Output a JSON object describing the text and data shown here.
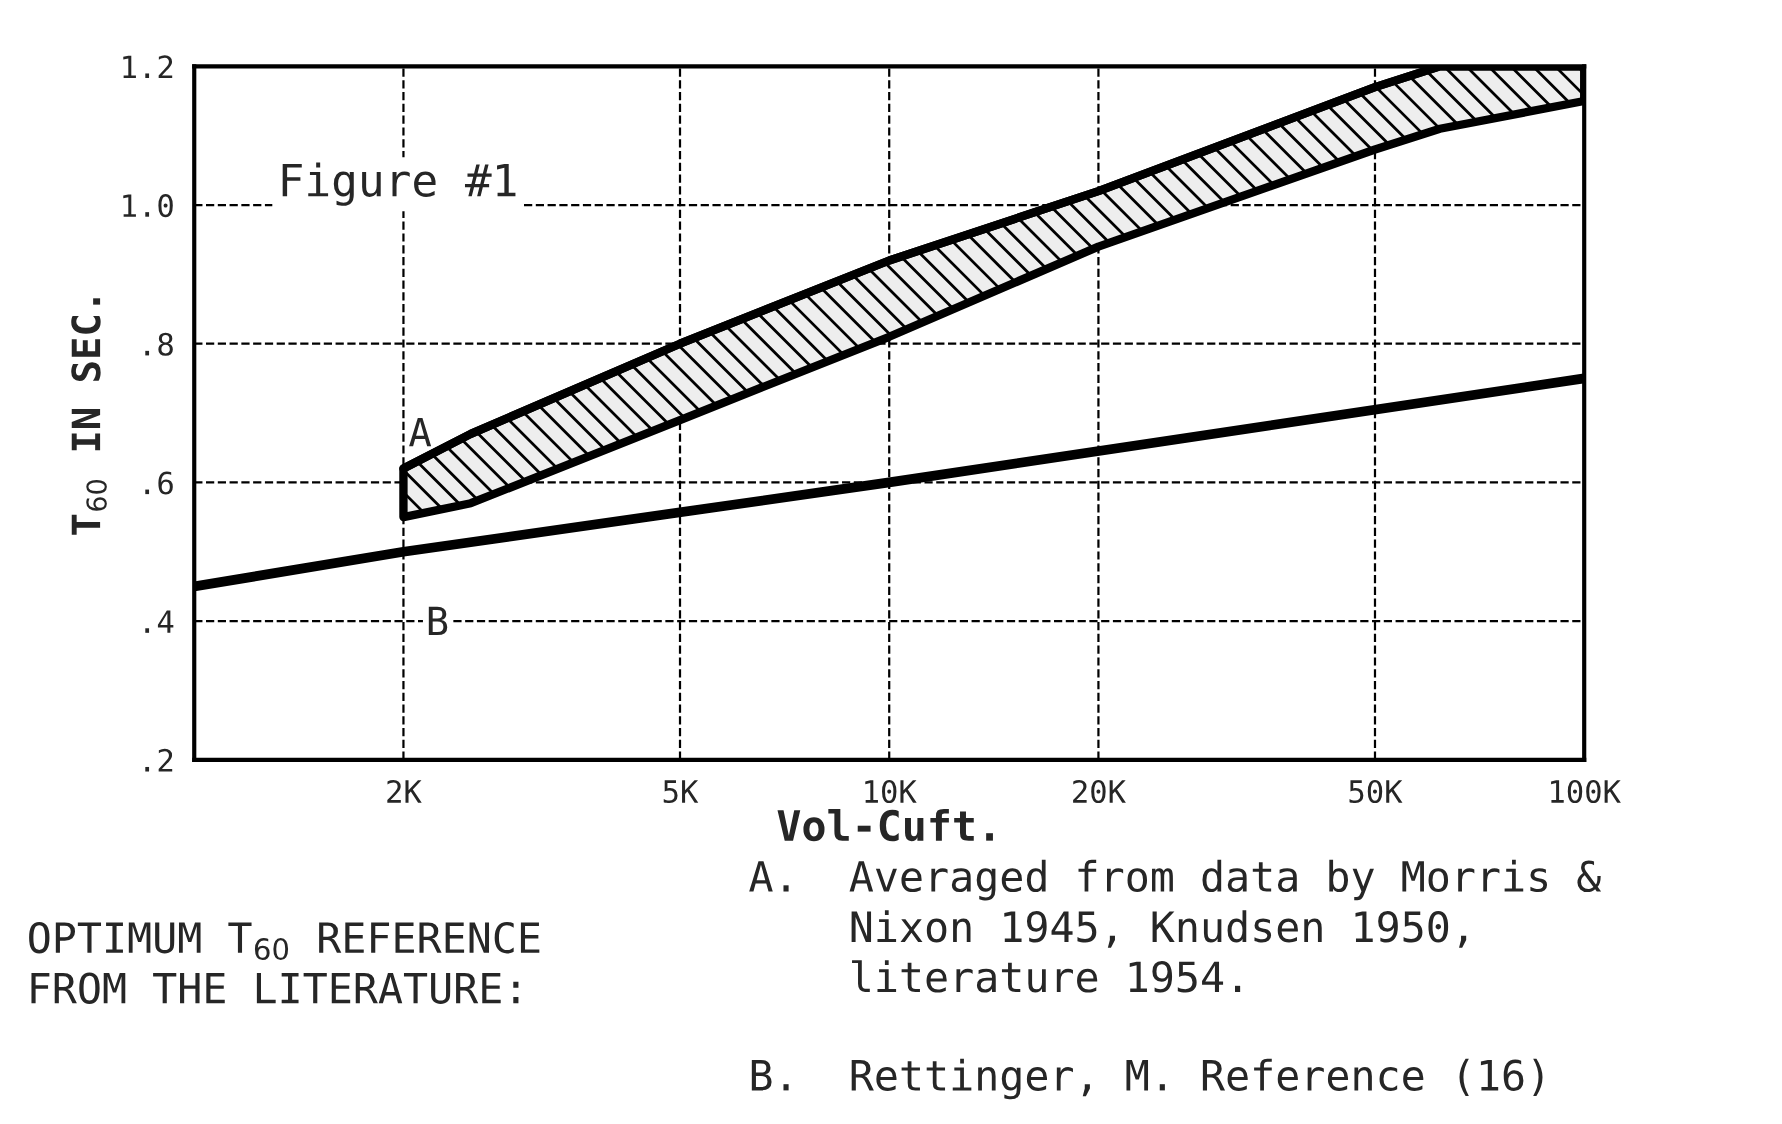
{
  "chart_data": {
    "type": "line",
    "xlabel": "Vol-Cuft.",
    "ylabel": "T$_{60}$ IN SEC.",
    "log": "x",
    "grid": true,
    "legend": false,
    "xlim": [
      1000,
      100000
    ],
    "xticks": [
      {
        "value": 2000,
        "label": "2K"
      },
      {
        "value": 5000,
        "label": "5K"
      },
      {
        "value": 10000,
        "label": "10K"
      },
      {
        "value": 20000,
        "label": "20K"
      },
      {
        "value": 50000,
        "label": "50K"
      },
      {
        "value": 100000,
        "label": "100K"
      }
    ],
    "ylim": [
      0.2,
      1.2
    ],
    "yticks": [
      {
        "value": 0.2,
        "label": ".2"
      },
      {
        "value": 0.4,
        "label": ".4"
      },
      {
        "value": 0.6,
        "label": ".6"
      },
      {
        "value": 0.8,
        "label": ".8"
      },
      {
        "value": 1.0,
        "label": "1.0"
      },
      {
        "value": 1.2,
        "label": "1.2"
      }
    ],
    "series": [
      {
        "name": "A",
        "type": "line",
        "color": "#000000",
        "x": [
          2000,
          2500,
          5000,
          10000,
          20000,
          50000,
          62000,
          100000
        ],
        "values": [
          0.62,
          0.67,
          0.8,
          0.92,
          1.02,
          1.17,
          1.2,
          1.2
        ],
        "lower": [
          0.55,
          0.57,
          0.69,
          0.81,
          0.94,
          1.08,
          1.11,
          1.15
        ],
        "upper": [
          0.62,
          0.67,
          0.8,
          0.92,
          1.02,
          1.17,
          1.2,
          1.2
        ]
      },
      {
        "name": "B",
        "color": "#000000",
        "x": [
          1000,
          2000,
          10000,
          100000
        ],
        "values": [
          0.45,
          0.5,
          0.6,
          0.75
        ]
      }
    ],
    "annotations": [
      "Figure #1",
      "OPTIMUM T$_{60}$ REFERENCE\nFROM THE LITERATURE:",
      "A.  Averaged from data by Morris &\n    Nixon 1945, Knudsen 1950,\n    literature 1954.",
      "B.  Rettinger, M. Reference (16)"
    ]
  }
}
